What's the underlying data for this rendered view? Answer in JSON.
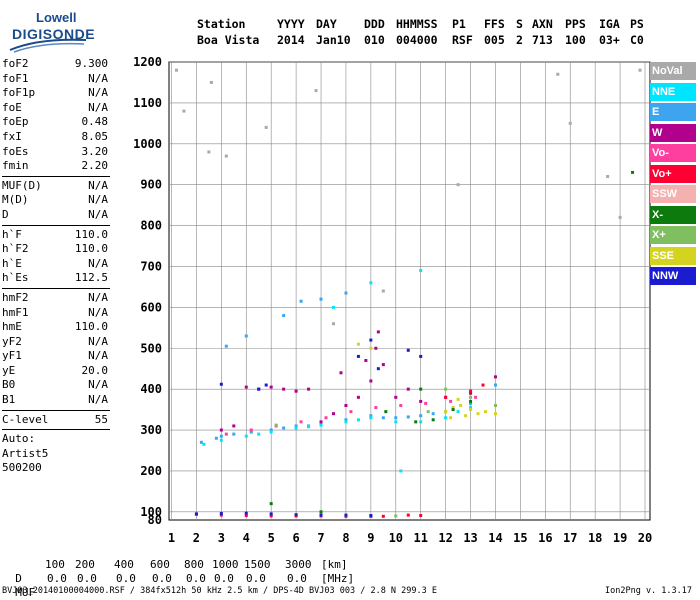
{
  "logo": {
    "line1": "Lowell",
    "line2": "DIGISONDE"
  },
  "header": {
    "station_label": "Station",
    "station_value": "Boa Vista",
    "yyyy_label": "YYYY",
    "yyyy_value": "2014",
    "day_label": "DAY",
    "day_value": "Jan10",
    "ddd_label": "DDD",
    "ddd_value": "010",
    "hhmmss_label": "HHMMSS",
    "hhmmss_value": "004000",
    "p1_label": "P1",
    "p1_value": "RSF",
    "ffs_label": "FFS",
    "ffs_value": "005",
    "s_label": "S",
    "s_value": "2",
    "axn_label": "AXN",
    "axn_value": "713",
    "pps_label": "PPS",
    "pps_value": "100",
    "iga_label": "IGA",
    "iga_value": "03+",
    "ps_label": "PS",
    "ps_value": "C0"
  },
  "params_group1": [
    {
      "k": "foF2",
      "v": "9.300"
    },
    {
      "k": "foF1",
      "v": "N/A"
    },
    {
      "k": "foF1p",
      "v": "N/A"
    },
    {
      "k": "foE",
      "v": "N/A"
    },
    {
      "k": "foEp",
      "v": "0.48"
    },
    {
      "k": "fxI",
      "v": "8.05"
    },
    {
      "k": "foEs",
      "v": "3.20"
    },
    {
      "k": "fmin",
      "v": "2.20"
    }
  ],
  "params_group2": [
    {
      "k": "MUF(D)",
      "v": "N/A"
    },
    {
      "k": "M(D)",
      "v": "N/A"
    },
    {
      "k": "D",
      "v": "N/A"
    }
  ],
  "params_group3": [
    {
      "k": "h`F",
      "v": "110.0"
    },
    {
      "k": "h`F2",
      "v": "110.0"
    },
    {
      "k": "h`E",
      "v": "N/A"
    },
    {
      "k": "h`Es",
      "v": "112.5"
    }
  ],
  "params_group4": [
    {
      "k": "hmF2",
      "v": "N/A"
    },
    {
      "k": "hmF1",
      "v": "N/A"
    },
    {
      "k": "hmE",
      "v": "110.0"
    },
    {
      "k": "yF2",
      "v": "N/A"
    },
    {
      "k": "yF1",
      "v": "N/A"
    },
    {
      "k": "yE",
      "v": "20.0"
    },
    {
      "k": "B0",
      "v": "N/A"
    },
    {
      "k": "B1",
      "v": "N/A"
    }
  ],
  "params_group5": [
    {
      "k": "C-level",
      "v": "55"
    }
  ],
  "auto": {
    "line1": "Auto:",
    "line2": "Artist5",
    "line3": "500200"
  },
  "legend": [
    {
      "label": "NoVal",
      "color": "#a9a9a9"
    },
    {
      "label": "NNE",
      "color": "#00e5ff"
    },
    {
      "label": "E",
      "color": "#3da4f0"
    },
    {
      "label": "W",
      "color": "#b0008c"
    },
    {
      "label": "Vo-",
      "color": "#ff3fa0"
    },
    {
      "label": "Vo+",
      "color": "#ff0033"
    },
    {
      "label": "SSW",
      "color": "#f5b0b0"
    },
    {
      "label": "X-",
      "color": "#0c7a0c"
    },
    {
      "label": "X+",
      "color": "#7fbf5f"
    },
    {
      "label": "SSE",
      "color": "#d4d420"
    },
    {
      "label": "NNW",
      "color": "#1b1bd0"
    }
  ],
  "bottom": {
    "d_label": "D",
    "d_values": [
      "100",
      "200",
      "400",
      "600",
      "800",
      "1000",
      "1500",
      "3000"
    ],
    "d_unit": "[km]",
    "muf_label": "MUF",
    "muf_values": [
      "0.0",
      "0.0",
      "0.0",
      "0.0",
      "0.0",
      "0.0",
      "0.0",
      "0.0"
    ],
    "muf_unit": "[MHz]"
  },
  "footer": {
    "left": "BVJ03_20140100004000.RSF / 384fx512h 50 kHz 2.5 km / DPS-4D BVJ03 003 / 2.8 N 299.3 E",
    "right": "Ion2Png v. 1.3.17"
  },
  "chart_data": {
    "type": "scatter",
    "xlabel": "",
    "ylabel": "",
    "x_ticks": [
      1,
      2,
      3,
      4,
      5,
      6,
      7,
      8,
      9,
      10,
      11,
      12,
      13,
      14,
      15,
      16,
      17,
      18,
      19,
      20
    ],
    "y_ticks": [
      80,
      100,
      200,
      300,
      400,
      500,
      600,
      700,
      800,
      900,
      1000,
      1100,
      1200
    ],
    "xlim": [
      0.9,
      20.2
    ],
    "ylim": [
      80,
      1200
    ],
    "grid": true,
    "series": [
      {
        "name": "E",
        "color": "#3da4f0",
        "points": [
          [
            2.2,
            270
          ],
          [
            2.8,
            280
          ],
          [
            3.5,
            290
          ],
          [
            4.2,
            295
          ],
          [
            5,
            300
          ],
          [
            6,
            310
          ],
          [
            7,
            315
          ],
          [
            8,
            325
          ],
          [
            9,
            335
          ],
          [
            10,
            330
          ],
          [
            11,
            335
          ],
          [
            12,
            345
          ],
          [
            13,
            365
          ],
          [
            14,
            410
          ],
          [
            3,
            285
          ],
          [
            5.5,
            305
          ],
          [
            6.5,
            310
          ],
          [
            9.5,
            330
          ],
          [
            10.5,
            332
          ],
          [
            11.5,
            340
          ],
          [
            5.5,
            580
          ],
          [
            6.2,
            615
          ],
          [
            7,
            620
          ],
          [
            8,
            635
          ],
          [
            4,
            530
          ],
          [
            3.2,
            505
          ]
        ]
      },
      {
        "name": "NNE",
        "color": "#00e5ff",
        "points": [
          [
            2.3,
            265
          ],
          [
            3,
            275
          ],
          [
            4,
            285
          ],
          [
            5,
            295
          ],
          [
            6,
            305
          ],
          [
            7,
            312
          ],
          [
            8,
            320
          ],
          [
            9,
            330
          ],
          [
            10,
            320
          ],
          [
            11,
            320
          ],
          [
            12,
            330
          ],
          [
            12.5,
            345
          ],
          [
            13,
            355
          ],
          [
            4.5,
            290
          ],
          [
            6.5,
            308
          ],
          [
            8.5,
            325
          ],
          [
            10.2,
            200
          ],
          [
            7.5,
            600
          ],
          [
            9,
            660
          ],
          [
            11,
            690
          ]
        ]
      },
      {
        "name": "W",
        "color": "#b0008c",
        "points": [
          [
            3,
            300
          ],
          [
            3.5,
            310
          ],
          [
            4,
            405
          ],
          [
            4.5,
            400
          ],
          [
            5,
            405
          ],
          [
            5.5,
            400
          ],
          [
            6,
            395
          ],
          [
            6.5,
            400
          ],
          [
            7,
            320
          ],
          [
            7.5,
            340
          ],
          [
            8,
            360
          ],
          [
            8.5,
            380
          ],
          [
            9,
            420
          ],
          [
            9.2,
            500
          ],
          [
            10,
            380
          ],
          [
            11,
            370
          ],
          [
            10.5,
            400
          ],
          [
            12,
            380
          ],
          [
            13,
            390
          ],
          [
            14,
            430
          ],
          [
            8.8,
            470
          ],
          [
            9.5,
            460
          ],
          [
            9.3,
            540
          ],
          [
            7.8,
            440
          ]
        ]
      },
      {
        "name": "Vo-",
        "color": "#ff3fa0",
        "points": [
          [
            3.2,
            290
          ],
          [
            4.2,
            300
          ],
          [
            5.2,
            310
          ],
          [
            6.2,
            320
          ],
          [
            7.2,
            330
          ],
          [
            8.2,
            345
          ],
          [
            9.2,
            355
          ],
          [
            10.2,
            360
          ],
          [
            11.2,
            365
          ],
          [
            12.2,
            370
          ],
          [
            13.2,
            380
          ]
        ]
      },
      {
        "name": "Vo+",
        "color": "#ff0033",
        "points": [
          [
            2,
            94
          ],
          [
            3,
            92
          ],
          [
            4,
            91
          ],
          [
            5,
            90
          ],
          [
            6,
            90
          ],
          [
            7,
            90
          ],
          [
            8,
            89
          ],
          [
            9,
            89
          ],
          [
            9.5,
            89
          ],
          [
            10.5,
            92
          ],
          [
            11,
            91
          ],
          [
            12,
            380
          ],
          [
            13,
            395
          ],
          [
            13.5,
            410
          ]
        ]
      },
      {
        "name": "SSE",
        "color": "#d4d420",
        "points": [
          [
            12,
            345
          ],
          [
            12.3,
            355
          ],
          [
            12.6,
            360
          ],
          [
            13,
            350
          ],
          [
            13.3,
            340
          ],
          [
            12.2,
            330
          ],
          [
            12.8,
            335
          ],
          [
            13.6,
            345
          ],
          [
            14,
            340
          ],
          [
            8.5,
            510
          ],
          [
            9,
            500
          ],
          [
            12.5,
            375
          ]
        ]
      },
      {
        "name": "NNW",
        "color": "#1b1bd0",
        "points": [
          [
            2,
            95
          ],
          [
            3,
            96
          ],
          [
            4,
            97
          ],
          [
            5,
            95
          ],
          [
            6,
            93
          ],
          [
            7,
            92
          ],
          [
            8,
            92
          ],
          [
            9,
            91
          ],
          [
            8.5,
            480
          ],
          [
            9,
            520
          ],
          [
            9.3,
            450
          ],
          [
            10.5,
            495
          ],
          [
            11,
            480
          ],
          [
            4.5,
            400
          ],
          [
            4.8,
            410
          ],
          [
            3,
            412
          ]
        ]
      },
      {
        "name": "X-",
        "color": "#0c7a0c",
        "points": [
          [
            5,
            120
          ],
          [
            7,
            100
          ],
          [
            10.8,
            320
          ],
          [
            11.5,
            325
          ],
          [
            12.3,
            350
          ],
          [
            13,
            370
          ],
          [
            11,
            400
          ],
          [
            9.6,
            345
          ],
          [
            19.5,
            930
          ]
        ]
      },
      {
        "name": "X+",
        "color": "#7fbf5f",
        "points": [
          [
            10,
            90
          ],
          [
            12,
            400
          ],
          [
            13,
            380
          ],
          [
            14,
            360
          ],
          [
            11.3,
            345
          ],
          [
            5.2,
            312
          ]
        ]
      },
      {
        "name": "NoVal",
        "color": "#a9a9a9",
        "points": [
          [
            1.2,
            1180
          ],
          [
            1.5,
            1080
          ],
          [
            2.6,
            1150
          ],
          [
            6.8,
            1130
          ],
          [
            7.5,
            560
          ],
          [
            9.5,
            640
          ],
          [
            12.5,
            900
          ],
          [
            16.5,
            1170
          ],
          [
            17,
            1050
          ],
          [
            18.5,
            920
          ],
          [
            19,
            820
          ],
          [
            19.8,
            1180
          ],
          [
            2.5,
            980
          ],
          [
            3.2,
            970
          ],
          [
            4.8,
            1040
          ]
        ]
      }
    ]
  }
}
